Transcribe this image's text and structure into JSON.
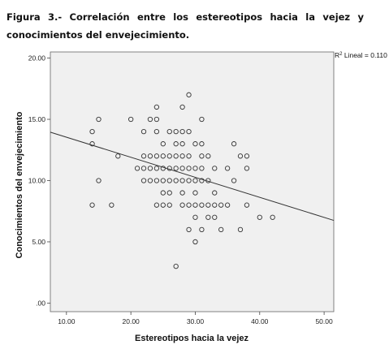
{
  "figure": {
    "caption": "Figura 3.- Correlación entre los estereotipos hacia la vejez y conocimientos del envejecimiento."
  },
  "chart_data": {
    "type": "scatter",
    "xlabel": "Estereotipos hacia la vejez",
    "ylabel": "Conocimientos del envejecimiento",
    "xlim": [
      7.5,
      51.5
    ],
    "ylim": [
      -0.7,
      20.5
    ],
    "x_ticks": [
      10,
      20,
      30,
      40,
      50
    ],
    "x_tick_labels": [
      "10.00",
      "20.00",
      "30.00",
      "40.00",
      "50.00"
    ],
    "y_ticks": [
      0,
      5,
      10,
      15,
      20
    ],
    "y_tick_labels": [
      ".00",
      "5.00",
      "10.00",
      "15.00",
      "20.00"
    ],
    "grid": false,
    "annotation": {
      "r2_label": "R",
      "r2_sup": "2",
      "r2_text": " Lineal = 0.110"
    },
    "fit_line": {
      "x": [
        7.5,
        51.5
      ],
      "y": [
        13.95,
        6.75
      ]
    },
    "points": [
      [
        15,
        15
      ],
      [
        14,
        14
      ],
      [
        14,
        13
      ],
      [
        15,
        10
      ],
      [
        14,
        8
      ],
      [
        17,
        8
      ],
      [
        18,
        12
      ],
      [
        20,
        15
      ],
      [
        21,
        11
      ],
      [
        22,
        14
      ],
      [
        22,
        12
      ],
      [
        22,
        11
      ],
      [
        22,
        10
      ],
      [
        23,
        15
      ],
      [
        23,
        12
      ],
      [
        23,
        11
      ],
      [
        23,
        10
      ],
      [
        24,
        16
      ],
      [
        24,
        15
      ],
      [
        24,
        14
      ],
      [
        24,
        12
      ],
      [
        24,
        11
      ],
      [
        24,
        10
      ],
      [
        24,
        8
      ],
      [
        25,
        13
      ],
      [
        25,
        12
      ],
      [
        25,
        11
      ],
      [
        25,
        10
      ],
      [
        25,
        9
      ],
      [
        25,
        8
      ],
      [
        26,
        14
      ],
      [
        26,
        12
      ],
      [
        26,
        11
      ],
      [
        26,
        10
      ],
      [
        26,
        9
      ],
      [
        26,
        8
      ],
      [
        27,
        14
      ],
      [
        27,
        13
      ],
      [
        27,
        12
      ],
      [
        27,
        11
      ],
      [
        27,
        10
      ],
      [
        27,
        3
      ],
      [
        28,
        16
      ],
      [
        28,
        14
      ],
      [
        28,
        13
      ],
      [
        28,
        12
      ],
      [
        28,
        11
      ],
      [
        28,
        10
      ],
      [
        28,
        9
      ],
      [
        28,
        8
      ],
      [
        29,
        17
      ],
      [
        29,
        14
      ],
      [
        29,
        12
      ],
      [
        29,
        11
      ],
      [
        29,
        10
      ],
      [
        29,
        8
      ],
      [
        29,
        6
      ],
      [
        30,
        13
      ],
      [
        30,
        11
      ],
      [
        30,
        10
      ],
      [
        30,
        9
      ],
      [
        30,
        8
      ],
      [
        30,
        7
      ],
      [
        30,
        5
      ],
      [
        31,
        15
      ],
      [
        31,
        13
      ],
      [
        31,
        12
      ],
      [
        31,
        11
      ],
      [
        31,
        10
      ],
      [
        31,
        8
      ],
      [
        31,
        6
      ],
      [
        32,
        12
      ],
      [
        32,
        10
      ],
      [
        32,
        8
      ],
      [
        32,
        7
      ],
      [
        33,
        11
      ],
      [
        33,
        9
      ],
      [
        33,
        8
      ],
      [
        33,
        7
      ],
      [
        34,
        8
      ],
      [
        34,
        6
      ],
      [
        35,
        11
      ],
      [
        35,
        8
      ],
      [
        36,
        13
      ],
      [
        36,
        10
      ],
      [
        37,
        12
      ],
      [
        37,
        6
      ],
      [
        38,
        12
      ],
      [
        38,
        11
      ],
      [
        38,
        8
      ],
      [
        40,
        7
      ],
      [
        42,
        7
      ]
    ]
  }
}
